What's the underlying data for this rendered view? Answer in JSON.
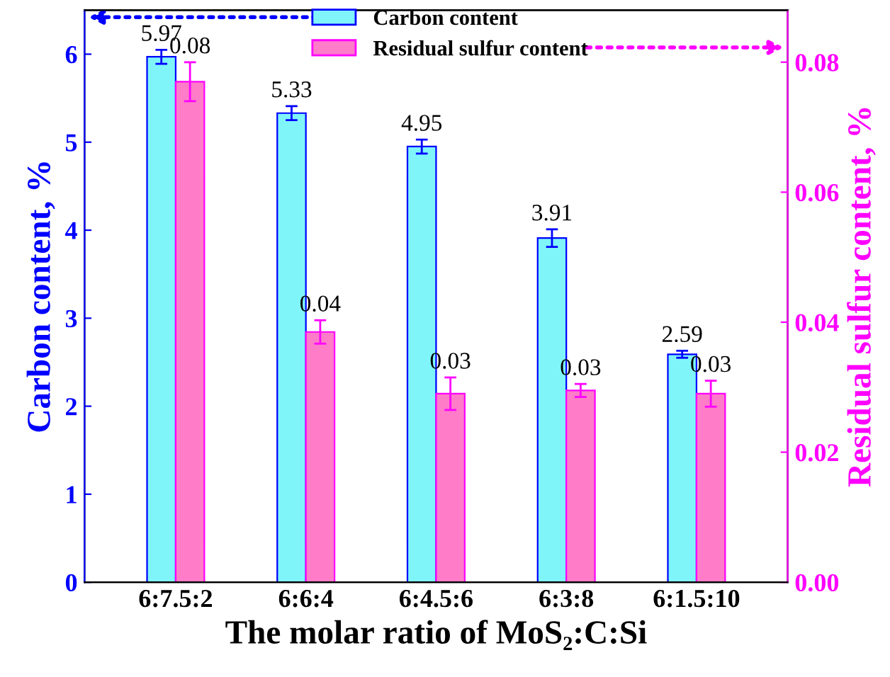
{
  "chart_data": {
    "type": "bar",
    "xlabel": "The molar ratio of MoS₂:C:Si",
    "ylabel": "Carbon content, %",
    "y2label": "Residual sulfur content, %",
    "categories": [
      "6:7.5:2",
      "6:6:4",
      "6:4.5:6",
      "6:3:8",
      "6:1.5:10"
    ],
    "series": [
      {
        "name": "Carbon content",
        "color": "#7ff5fa",
        "values": [
          5.97,
          5.33,
          4.95,
          3.91,
          2.59
        ],
        "errors": [
          0.08,
          0.08,
          0.08,
          0.1,
          0.04
        ],
        "value_labels": [
          "5.97",
          "5.33",
          "4.95",
          "3.91",
          "2.59"
        ]
      },
      {
        "name": "Residual sulfur content",
        "color": "#ff7cc8",
        "axis": "y2",
        "values": [
          0.077,
          0.0385,
          0.029,
          0.0295,
          0.029
        ],
        "errors": [
          0.003,
          0.0018,
          0.0025,
          0.001,
          0.002
        ],
        "value_labels": [
          "0.08",
          "0.04",
          "0.03",
          "0.03",
          "0.03"
        ]
      }
    ],
    "ylim": [
      0,
      6.5
    ],
    "yticks": [
      0,
      1,
      2,
      3,
      4,
      5,
      6
    ],
    "y2lim": [
      0,
      0.088
    ],
    "y2ticks": [
      {
        "value": 0,
        "label": "0.00"
      },
      {
        "value": 0.02,
        "label": "0.02"
      },
      {
        "value": 0.04,
        "label": "0.04"
      },
      {
        "value": 0.06,
        "label": "0.06"
      },
      {
        "value": 0.08,
        "label": "0.08"
      }
    ],
    "legend": "top",
    "grid": false
  }
}
